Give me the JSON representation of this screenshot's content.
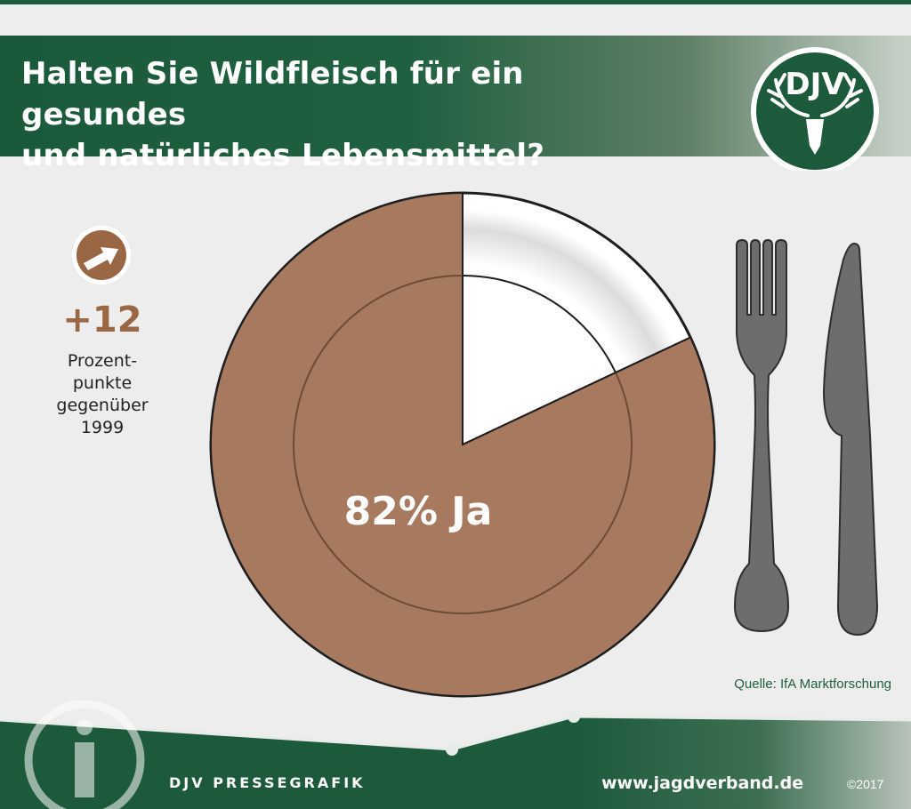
{
  "header": {
    "title": "Halten Sie Wildfleisch für ein gesundes\nund natürliches Lebensmittel?",
    "logo_text": "DJV"
  },
  "change": {
    "value": "+12",
    "note": "Prozent-\npunkte\ngegenüber\n1999",
    "icon": "arrow-up-right-icon"
  },
  "chart_data": {
    "type": "pie",
    "title": "Halten Sie Wildfleisch für ein gesundes und natürliches Lebensmittel?",
    "slices": [
      {
        "label": "Ja",
        "value": 82,
        "color": "#a77a5f"
      },
      {
        "label": "",
        "value": 18,
        "color": "#ffffff"
      }
    ],
    "data_label": "82% Ja"
  },
  "source": "Quelle: IfA Marktforschung",
  "footer": {
    "brand": "DJV PRESSEGRAFIK",
    "url": "www.jagdverband.de",
    "copyright": "©2017"
  },
  "colors": {
    "green": "#1d5a3c",
    "brown": "#a77a5f",
    "brown_dark": "#6e4a35",
    "background": "#ededed",
    "cutlery": "#6d6d6d"
  }
}
